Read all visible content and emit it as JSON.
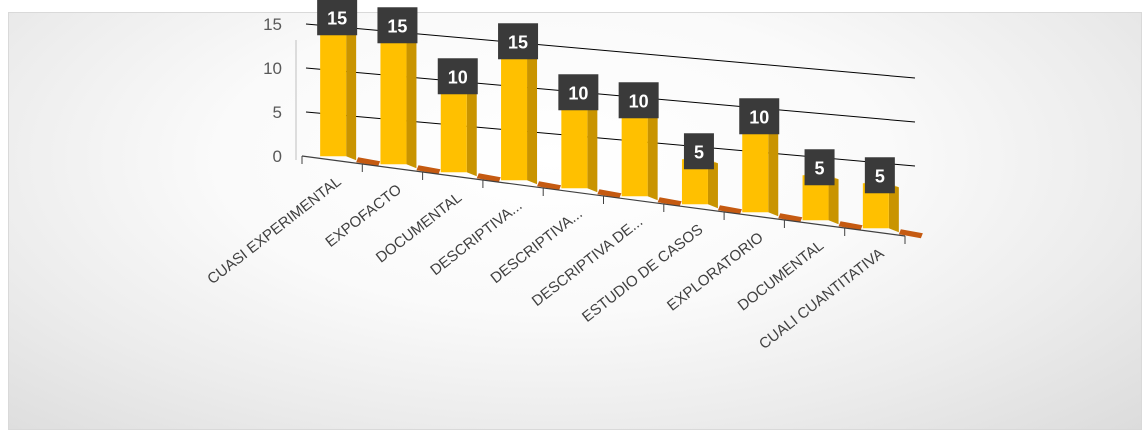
{
  "chart_data": {
    "type": "bar",
    "categories": [
      "CUASI EXPERIMENTAL",
      "EXPOFACTO",
      "DOCUMENTAL",
      "DESCRIPTIVA...",
      "DESCRIPTIVA...",
      "DESCRIPTIVA DE...",
      "ESTUDIO DE CASOS",
      "EXPLORATORIO",
      "DOCUMENTAL",
      "CUALI CUANTITATIVA"
    ],
    "series": [
      {
        "values": [
          15,
          15,
          10,
          15,
          10,
          10,
          5,
          10,
          5,
          5
        ],
        "data_labels": [
          "15",
          "15",
          "10",
          "15",
          "10",
          "10",
          "5",
          "10",
          "5",
          "5"
        ]
      },
      {
        "values": [
          0,
          0,
          0,
          0,
          0,
          0,
          0,
          0,
          0,
          0
        ]
      }
    ],
    "ylim": [
      0,
      15
    ],
    "y_ticks": [
      "0",
      "5",
      "10",
      "15"
    ],
    "title": "",
    "xlabel": "",
    "ylabel": "",
    "view": "3d-perspective",
    "grid": true,
    "legend": "none",
    "colors": {
      "bar_front": "#ffc000",
      "bar_side": "#c99400",
      "bar_top": "#ffd75e",
      "floor_bar": "#c55a11",
      "label_box": "#3a3a3a",
      "grid": "#000000"
    }
  }
}
